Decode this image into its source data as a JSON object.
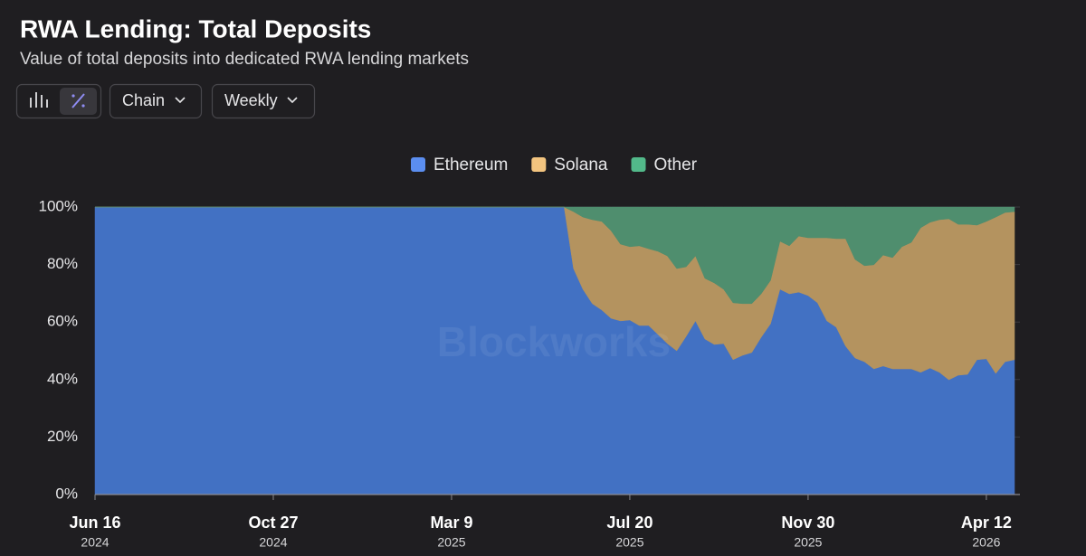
{
  "chart_data": {
    "type": "stacked_area_percent",
    "title": "RWA Lending: Total Deposits",
    "subtitle": "Value of total deposits into dedicated RWA lending markets",
    "watermark": "Blockworks",
    "x": [
      "2024-06-16",
      "2024-06-23",
      "2024-06-30",
      "2024-07-07",
      "2024-07-14",
      "2024-07-21",
      "2024-07-28",
      "2024-08-04",
      "2024-08-11",
      "2024-08-18",
      "2024-08-25",
      "2024-09-01",
      "2024-09-08",
      "2024-09-15",
      "2024-09-22",
      "2024-09-29",
      "2024-10-06",
      "2024-10-13",
      "2024-10-20",
      "2024-10-27",
      "2024-11-03",
      "2024-11-10",
      "2024-11-17",
      "2024-11-24",
      "2024-12-01",
      "2024-12-08",
      "2024-12-15",
      "2024-12-22",
      "2024-12-29",
      "2025-01-05",
      "2025-01-12",
      "2025-01-19",
      "2025-01-26",
      "2025-02-02",
      "2025-02-09",
      "2025-02-16",
      "2025-02-23",
      "2025-03-02",
      "2025-03-09",
      "2025-03-16",
      "2025-03-23",
      "2025-03-30",
      "2025-04-06",
      "2025-04-13",
      "2025-04-20",
      "2025-04-27",
      "2025-05-04",
      "2025-05-11",
      "2025-05-18",
      "2025-05-25",
      "2025-06-01",
      "2025-06-08",
      "2025-06-15",
      "2025-06-22",
      "2025-06-29",
      "2025-07-06",
      "2025-07-13",
      "2025-07-20",
      "2025-07-27",
      "2025-08-03",
      "2025-08-10",
      "2025-08-17",
      "2025-08-24",
      "2025-08-31",
      "2025-09-07",
      "2025-09-14",
      "2025-09-21",
      "2025-09-28",
      "2025-10-05",
      "2025-10-12",
      "2025-10-19",
      "2025-10-26",
      "2025-11-02",
      "2025-11-09",
      "2025-11-16",
      "2025-11-23",
      "2025-11-30",
      "2025-12-07",
      "2025-12-14",
      "2025-12-21",
      "2025-12-28",
      "2026-01-04",
      "2026-01-11",
      "2026-01-18",
      "2026-01-25",
      "2026-02-01",
      "2026-02-08",
      "2026-02-15",
      "2026-02-22",
      "2026-03-01",
      "2026-03-08",
      "2026-03-15",
      "2026-03-22",
      "2026-03-29",
      "2026-04-05",
      "2026-04-12",
      "2026-04-19",
      "2026-04-26",
      "2026-05-03"
    ],
    "series": [
      {
        "name": "Ethereum",
        "color": "#4271c3",
        "legend_color": "#5b8ef0",
        "values": [
          100,
          100,
          100,
          100,
          100,
          100,
          100,
          100,
          100,
          100,
          100,
          100,
          100,
          100,
          100,
          100,
          100,
          100,
          100,
          100,
          100,
          100,
          100,
          100,
          100,
          100,
          100,
          100,
          100,
          100,
          100,
          100,
          100,
          100,
          100,
          100,
          100,
          100,
          100,
          100,
          100,
          100,
          100,
          100,
          100,
          100,
          100,
          100,
          100,
          100,
          100,
          78.6,
          71.4,
          66.4,
          64.2,
          61.3,
          60.4,
          60.7,
          58.8,
          58.8,
          55.7,
          52.5,
          50.0,
          55.0,
          60.4,
          54.1,
          52.2,
          52.5,
          46.9,
          48.4,
          49.4,
          54.7,
          59.4,
          71.4,
          69.8,
          70.4,
          69.2,
          66.7,
          60.4,
          58.2,
          51.6,
          47.5,
          46.2,
          43.7,
          44.7,
          43.7,
          43.7,
          43.7,
          42.5,
          44.0,
          42.5,
          39.9,
          41.5,
          41.8,
          46.9,
          47.2,
          42.1,
          46.2,
          46.9
        ]
      },
      {
        "name": "Solana",
        "color": "#b4935f",
        "legend_color": "#f2c47f",
        "values": [
          0,
          0,
          0,
          0,
          0,
          0,
          0,
          0,
          0,
          0,
          0,
          0,
          0,
          0,
          0,
          0,
          0,
          0,
          0,
          0,
          0,
          0,
          0,
          0,
          0,
          0,
          0,
          0,
          0,
          0,
          0,
          0,
          0,
          0,
          0,
          0,
          0,
          0,
          0,
          0,
          0,
          0,
          0,
          0,
          0,
          0,
          0,
          0,
          0,
          0,
          0,
          19.8,
          25.1,
          29.2,
          30.8,
          30.5,
          26.7,
          25.5,
          27.7,
          26.7,
          28.9,
          30.5,
          28.6,
          24.2,
          22.6,
          21.1,
          21.4,
          18.9,
          19.8,
          18.0,
          17.0,
          15.1,
          15.1,
          16.7,
          16.7,
          19.5,
          20.1,
          22.6,
          28.9,
          30.8,
          37.4,
          34.3,
          33.4,
          36.2,
          38.6,
          38.7,
          42.5,
          44.0,
          50.3,
          50.7,
          53.1,
          56.0,
          52.5,
          52.2,
          46.8,
          47.8,
          54.4,
          51.9,
          51.5
        ]
      },
      {
        "name": "Other",
        "color": "#4f8e6e",
        "legend_color": "#52b98a",
        "values": [
          0,
          0,
          0,
          0,
          0,
          0,
          0,
          0,
          0,
          0,
          0,
          0,
          0,
          0,
          0,
          0,
          0,
          0,
          0,
          0,
          0,
          0,
          0,
          0,
          0,
          0,
          0,
          0,
          0,
          0,
          0,
          0,
          0,
          0,
          0,
          0,
          0,
          0,
          0,
          0,
          0,
          0,
          0,
          0,
          0,
          0,
          0,
          0,
          0,
          0,
          0,
          1.6,
          3.5,
          4.4,
          5.0,
          8.2,
          12.9,
          13.8,
          13.5,
          14.5,
          15.4,
          17.0,
          21.4,
          20.8,
          17.0,
          24.8,
          26.4,
          28.6,
          33.3,
          33.6,
          33.6,
          30.2,
          25.5,
          11.9,
          13.5,
          10.1,
          10.7,
          10.7,
          10.7,
          11.0,
          11.0,
          18.2,
          20.4,
          20.1,
          16.7,
          17.6,
          13.8,
          12.3,
          7.2,
          5.3,
          4.4,
          4.1,
          6.0,
          6.0,
          6.3,
          5.0,
          3.5,
          1.9,
          1.6
        ]
      }
    ],
    "xlim": [
      "2024-06-16",
      "2026-05-03"
    ],
    "xticks": [
      {
        "value": "2024-06-16",
        "label": "Jun 16"
      },
      {
        "value": "2024-10-27",
        "label": "Oct 27"
      },
      {
        "value": "2025-03-09",
        "label": "Mar 9"
      },
      {
        "value": "2025-07-20",
        "label": "Jul 20"
      },
      {
        "value": "2025-11-30",
        "label": "Nov 30"
      },
      {
        "value": "2026-04-12",
        "label": "Apr 12"
      }
    ],
    "xtick_years": [
      "2024",
      "2024",
      "2025",
      "2025",
      "2025",
      "2026"
    ],
    "ylim": [
      0,
      100
    ],
    "yticks": [
      {
        "value": 0,
        "label": "0%"
      },
      {
        "value": 20,
        "label": "20%"
      },
      {
        "value": 40,
        "label": "40%"
      },
      {
        "value": 60,
        "label": "60%"
      },
      {
        "value": 80,
        "label": "80%"
      },
      {
        "value": 100,
        "label": "100%"
      }
    ],
    "grid": true
  },
  "controls": {
    "group_by": "Chain",
    "interval": "Weekly"
  }
}
